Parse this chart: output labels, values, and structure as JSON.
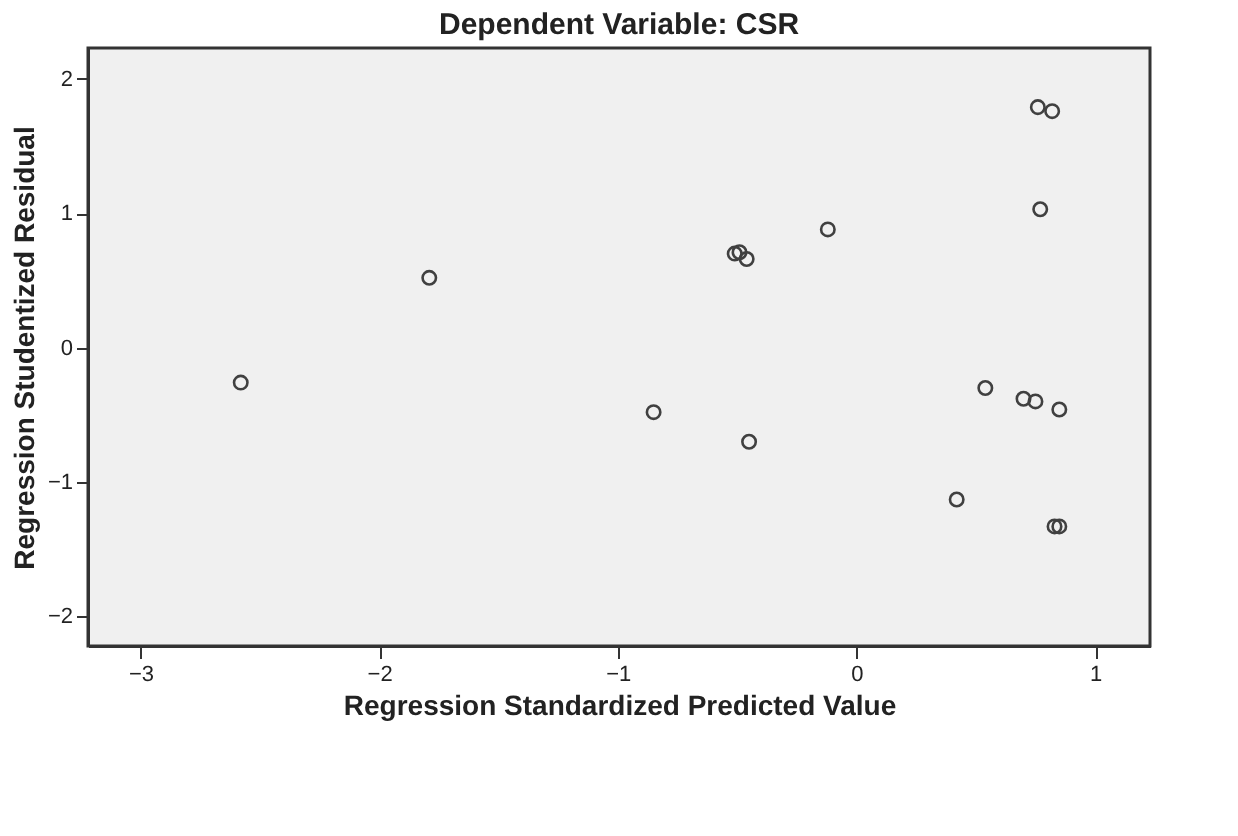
{
  "chart_data": {
    "type": "scatter",
    "title": "Dependent Variable: CSR",
    "xlabel": "Regression Standardized Predicted Value",
    "ylabel": "Regression Studentized Residual",
    "x": [
      -2.58,
      -1.79,
      -0.85,
      -0.51,
      -0.49,
      -0.46,
      -0.45,
      -0.12,
      0.42,
      0.54,
      0.7,
      0.75,
      0.85,
      0.76,
      0.82,
      0.77,
      0.83,
      0.85
    ],
    "series": [
      {
        "color": "#404040",
        "values": [
          -0.26,
          0.52,
          -0.48,
          0.7,
          0.71,
          0.66,
          -0.7,
          0.88,
          -1.13,
          -0.3,
          -0.38,
          -0.4,
          -0.46,
          1.79,
          1.76,
          1.03,
          -1.33,
          -1.33
        ]
      }
    ],
    "xlim": [
      -3.22,
      1.23
    ],
    "ylim": [
      -2.22,
      2.23
    ],
    "xticks": [
      -3,
      -2,
      -1,
      0,
      1
    ],
    "yticks": [
      -2,
      -1,
      0,
      1,
      2
    ],
    "grid": false,
    "legend": false,
    "marker": "circle"
  }
}
